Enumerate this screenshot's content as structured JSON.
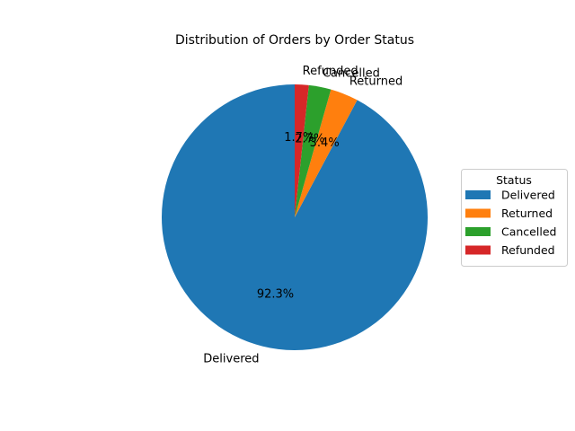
{
  "chart_data": {
    "type": "pie",
    "title": "Distribution of Orders by Order Status",
    "start_angle_deg": 90,
    "direction": "counterclockwise",
    "slices": [
      {
        "label": "Delivered",
        "value": 92.3,
        "pct_label": "92.3%",
        "color": "#1f77b4"
      },
      {
        "label": "Returned",
        "value": 3.4,
        "pct_label": "3.4%",
        "color": "#ff7f0e"
      },
      {
        "label": "Cancelled",
        "value": 2.7,
        "pct_label": "2.7%",
        "color": "#2ca02c"
      },
      {
        "label": "Refunded",
        "value": 1.7,
        "pct_label": "1.7%",
        "color": "#d62728"
      }
    ],
    "legend": {
      "title": "Status",
      "placement": "center-right",
      "entries": [
        "Delivered",
        "Returned",
        "Cancelled",
        "Refunded"
      ]
    }
  }
}
